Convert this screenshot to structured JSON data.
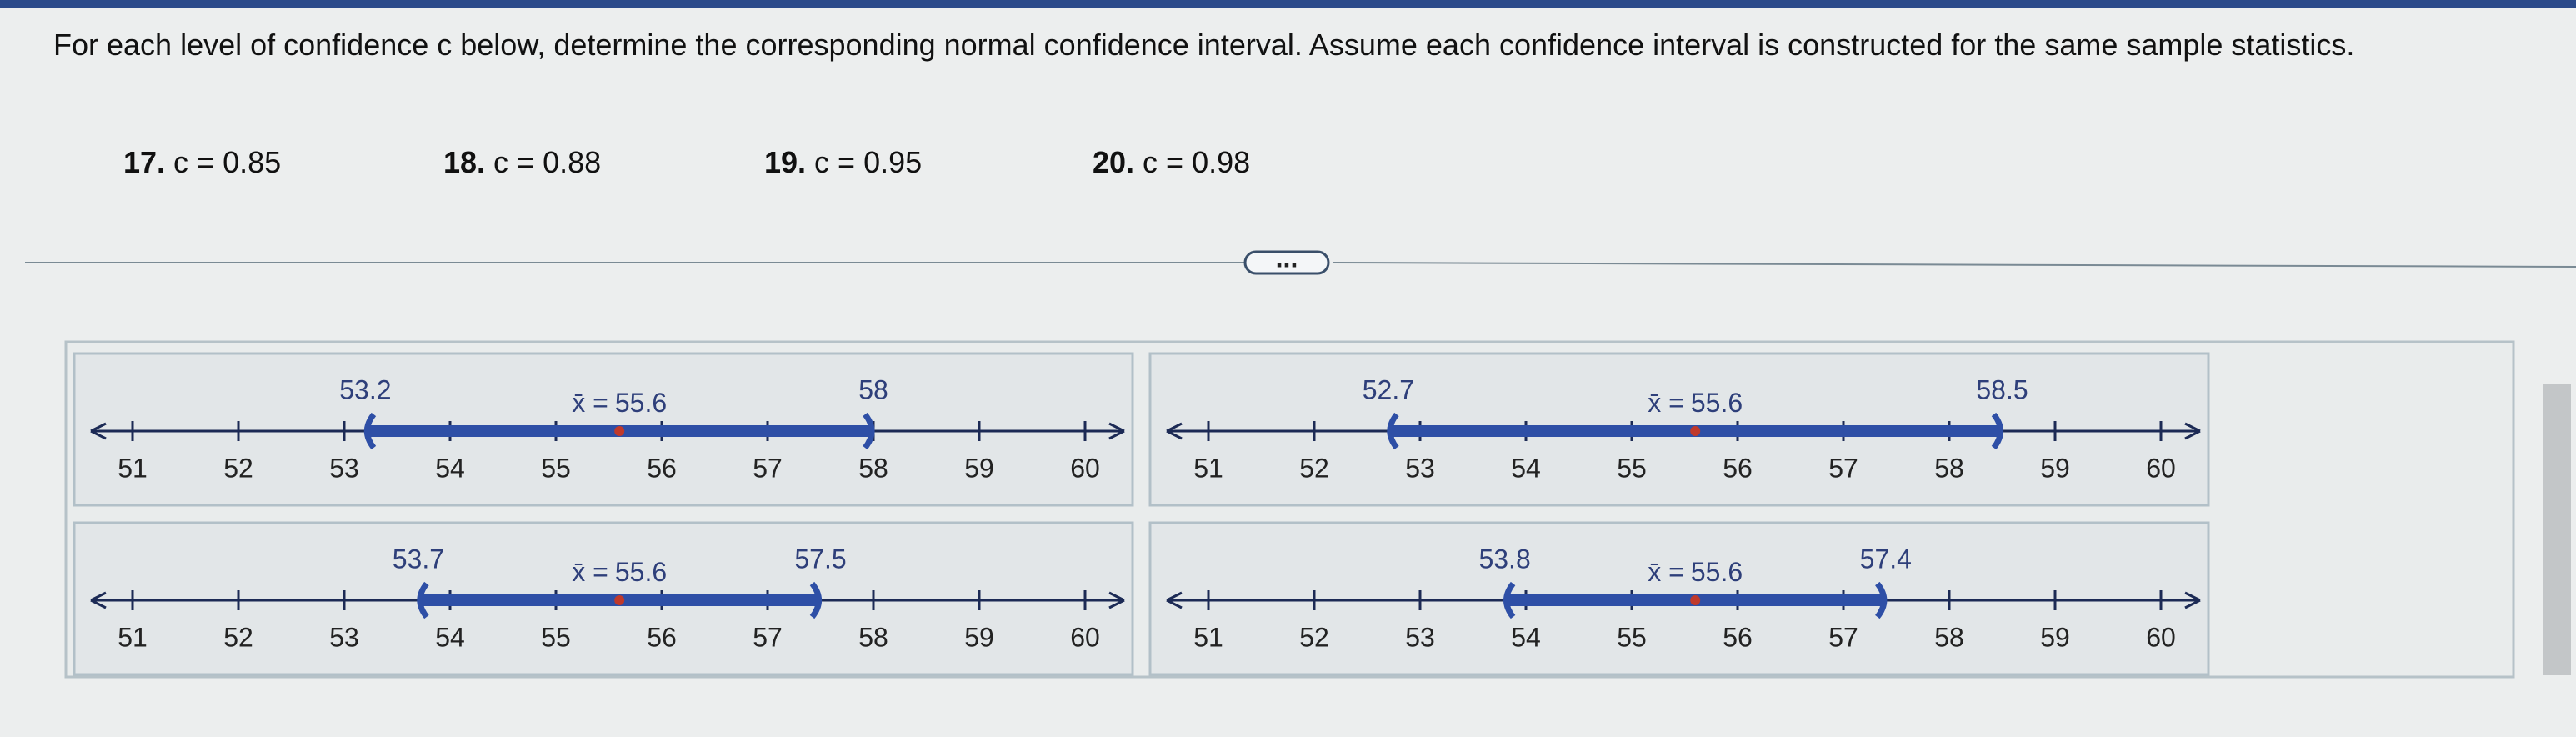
{
  "header": {
    "instruction": "For each level of confidence c below, determine the corresponding normal confidence interval. Assume each confidence interval is constructed for the same sample statistics."
  },
  "problems": [
    {
      "number": "17.",
      "text": "c = 0.85"
    },
    {
      "number": "18.",
      "text": "c = 0.88"
    },
    {
      "number": "19.",
      "text": "c = 0.95"
    },
    {
      "number": "20.",
      "text": "c = 0.98"
    }
  ],
  "divider_button": "...",
  "panels": [
    {
      "ticks": [
        51,
        52,
        53,
        54,
        55,
        56,
        57,
        58,
        59,
        60
      ],
      "lower": 53.2,
      "upper": 58,
      "mean_label": "x̄ =",
      "mean": 55.6
    },
    {
      "ticks": [
        51,
        52,
        53,
        54,
        55,
        56,
        57,
        58,
        59,
        60
      ],
      "lower": 52.7,
      "upper": 58.5,
      "mean_label": "x̄ =",
      "mean": 55.6
    },
    {
      "ticks": [
        51,
        52,
        53,
        54,
        55,
        56,
        57,
        58,
        59,
        60
      ],
      "lower": 53.7,
      "upper": 57.5,
      "mean_label": "x̄ =",
      "mean": 55.6
    },
    {
      "ticks": [
        51,
        52,
        53,
        54,
        55,
        56,
        57,
        58,
        59,
        60
      ],
      "lower": 53.8,
      "upper": 57.4,
      "mean_label": "x̄ =",
      "mean": 55.6
    }
  ]
}
